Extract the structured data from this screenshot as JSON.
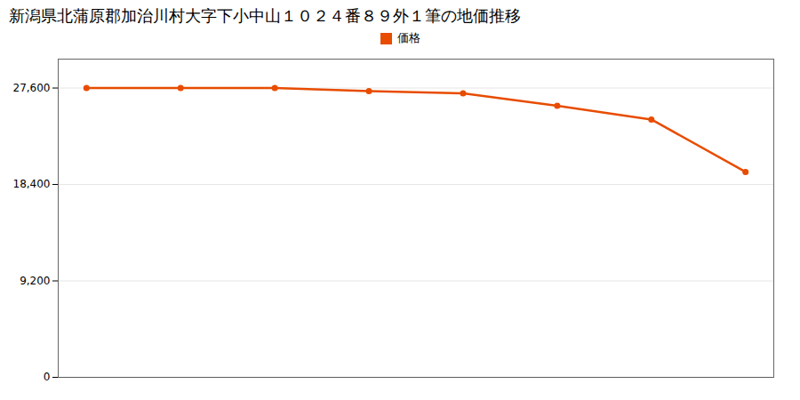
{
  "chart_data": {
    "type": "line",
    "title": "新潟県北蒲原郡加治川村大字下小中山１０２４番８９外１筆の地価推移",
    "x": [
      0,
      1,
      2,
      3,
      4,
      5,
      6,
      7
    ],
    "series": [
      {
        "name": "価格",
        "color": "#e84c00",
        "marker": "circle",
        "values": [
          27600,
          27600,
          27600,
          27300,
          27100,
          25900,
          24600,
          19600
        ]
      }
    ],
    "xlim": [
      -0.3,
      7.3
    ],
    "ylim": [
      0,
      30360
    ],
    "yticks": [
      0,
      {
        "value": 9200,
        "label": "9,200"
      },
      {
        "value": 18400,
        "label": "18,400"
      },
      {
        "value": 27600,
        "label": "27,600"
      }
    ],
    "grid": true,
    "legend": "top",
    "tick_labels": "y"
  }
}
